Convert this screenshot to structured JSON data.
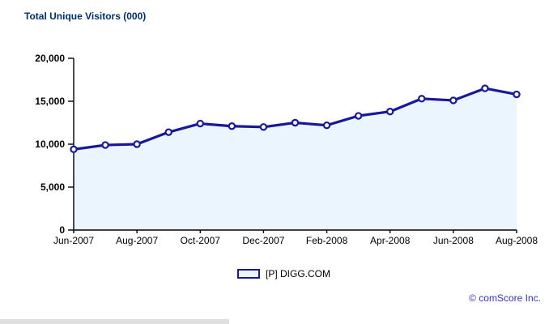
{
  "page": {
    "title": "Total Unique Visitors (000)",
    "copyright": "© comScore Inc."
  },
  "legend": {
    "label": "[P] DIGG.COM"
  },
  "colors": {
    "title": "#002F6D",
    "line": "#181899",
    "marker_fill": "#FFFFFF",
    "area_fill": "#EAF5FD",
    "axis": "#000000",
    "tick_label": "#000000",
    "copyright": "#3333CC",
    "scrollbar": "#DFDFDF"
  },
  "chart_data": {
    "type": "area",
    "title": "Total Unique Visitors (000)",
    "x": [
      "Jun-2007",
      "Jul-2007",
      "Aug-2007",
      "Sep-2007",
      "Oct-2007",
      "Nov-2007",
      "Dec-2007",
      "Jan-2008",
      "Feb-2008",
      "Mar-2008",
      "Apr-2008",
      "May-2008",
      "Jun-2008",
      "Jul-2008",
      "Aug-2008"
    ],
    "series": [
      {
        "name": "[P] DIGG.COM",
        "values": [
          9400,
          9900,
          10000,
          11400,
          12400,
          12100,
          12000,
          12500,
          12200,
          13300,
          13800,
          15300,
          15100,
          16500,
          15800
        ]
      }
    ],
    "x_tick_labels": [
      "Jun-2007",
      "Aug-2007",
      "Oct-2007",
      "Dec-2007",
      "Feb-2008",
      "Apr-2008",
      "Jun-2008",
      "Aug-2008"
    ],
    "x_tick_every": 2,
    "y_ticks": [
      0,
      5000,
      10000,
      15000,
      20000
    ],
    "ylim": [
      0,
      20000
    ],
    "grid": false,
    "legend_position": "bottom",
    "markers": true
  }
}
